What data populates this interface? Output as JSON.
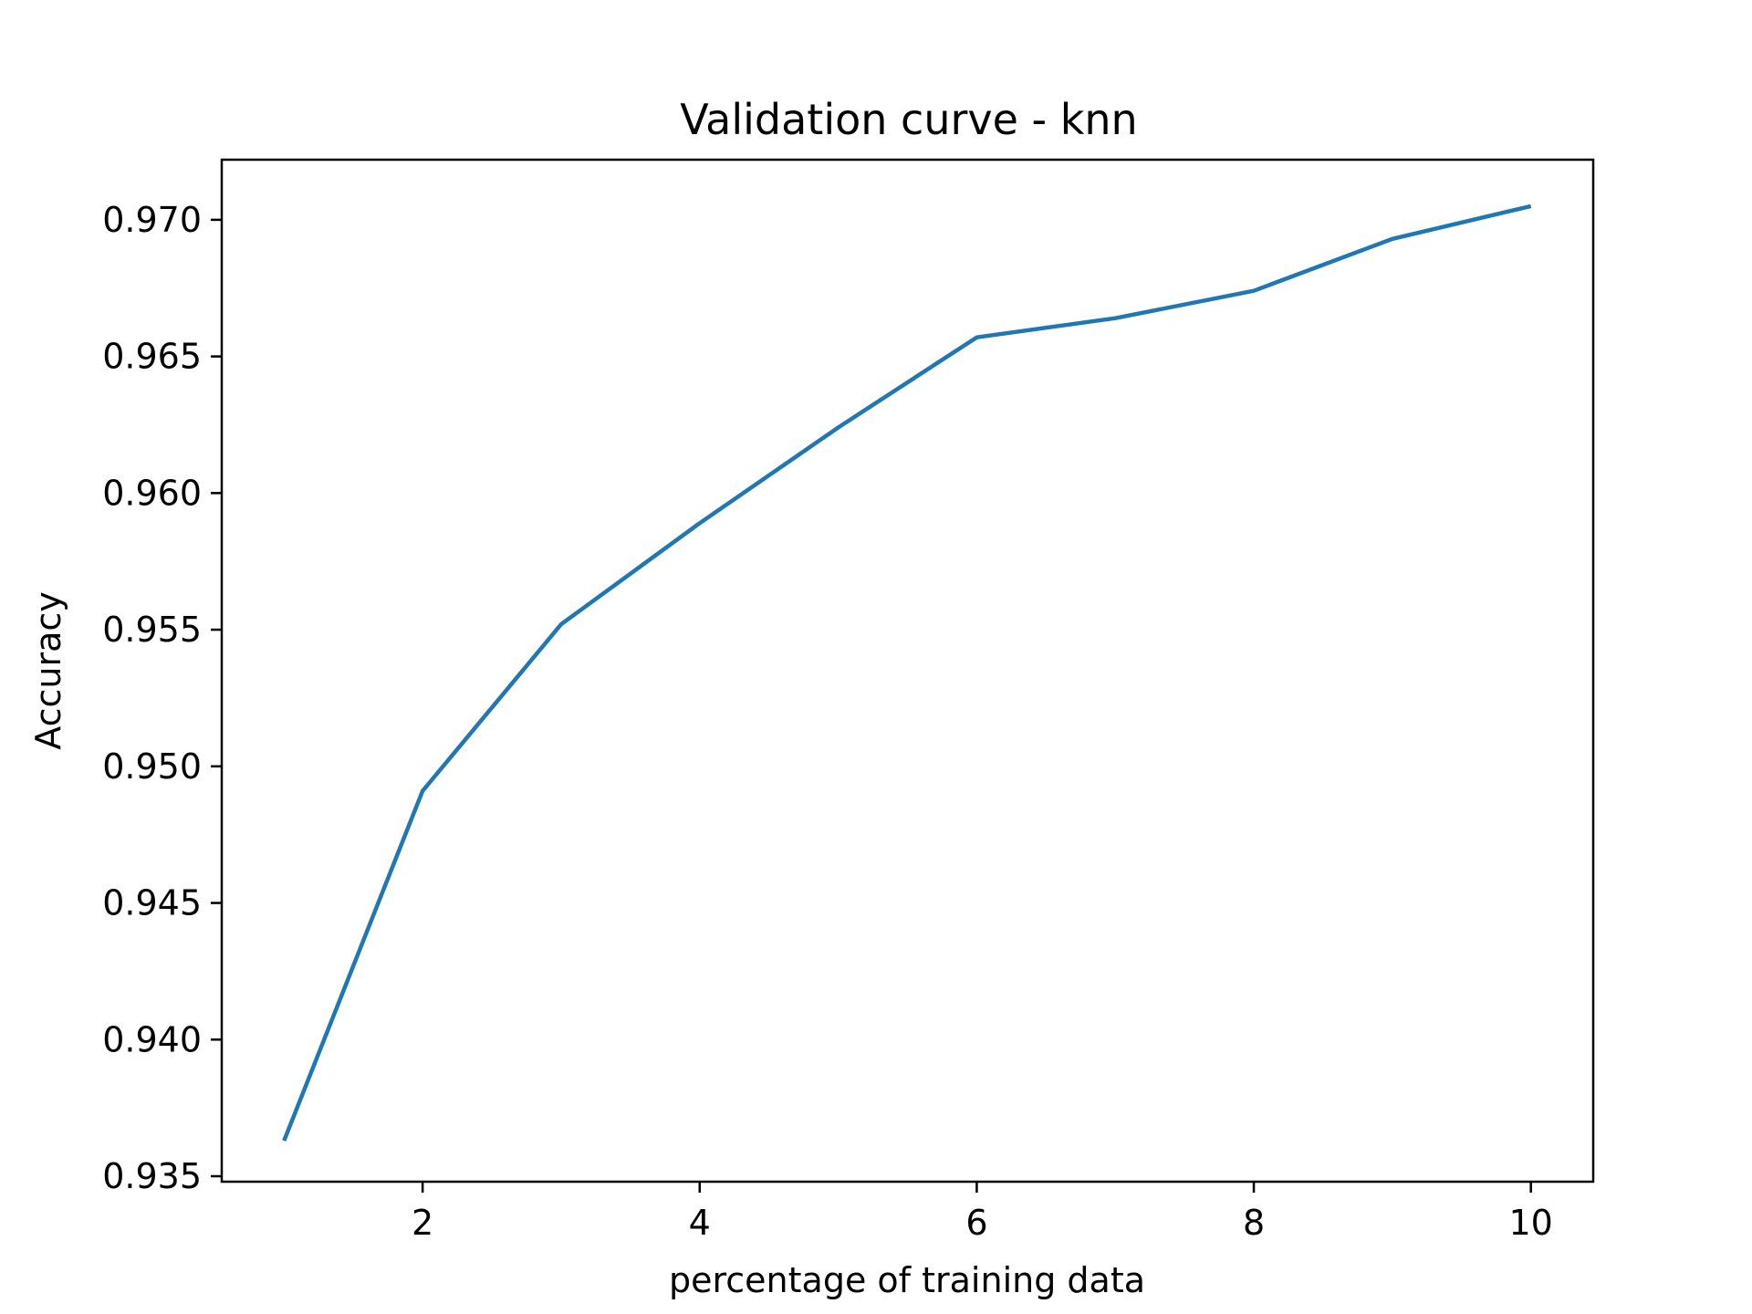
{
  "chart_data": {
    "type": "line",
    "title": "Validation curve - knn",
    "xlabel": "percentage of training data",
    "ylabel": "Accuracy",
    "xlim": [
      0.55,
      10.45
    ],
    "ylim": [
      0.9348,
      0.9722
    ],
    "x_ticks": [
      2,
      4,
      6,
      8,
      10
    ],
    "x_tick_labels": [
      "2",
      "4",
      "6",
      "8",
      "10"
    ],
    "y_ticks": [
      0.935,
      0.94,
      0.945,
      0.95,
      0.955,
      0.96,
      0.965,
      0.97
    ],
    "y_tick_labels": [
      "0.935",
      "0.940",
      "0.945",
      "0.950",
      "0.955",
      "0.960",
      "0.965",
      "0.970"
    ],
    "grid": false,
    "series": [
      {
        "color": "#1f77b4",
        "x": [
          1,
          2,
          3,
          4,
          5,
          6,
          7,
          8,
          9,
          10
        ],
        "y": [
          0.9363,
          0.9491,
          0.9552,
          0.9589,
          0.9624,
          0.9657,
          0.9664,
          0.9674,
          0.9693,
          0.9705
        ]
      }
    ]
  }
}
